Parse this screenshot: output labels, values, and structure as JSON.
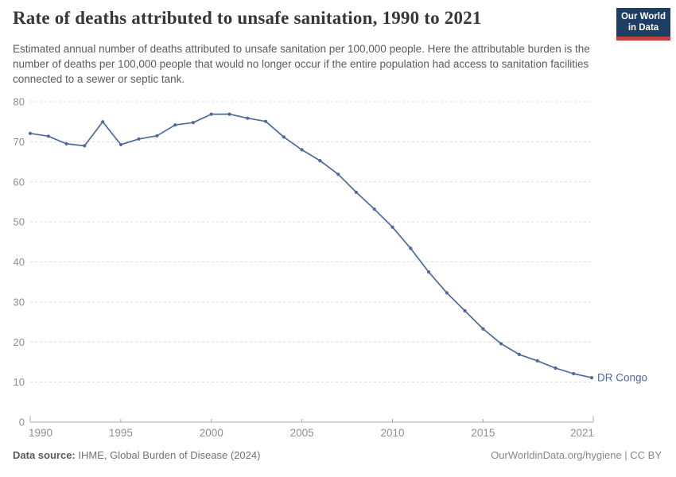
{
  "header": {
    "title": "Rate of deaths attributed to unsafe sanitation, 1990 to 2021",
    "logo": {
      "line1": "Our World",
      "line2": "in Data",
      "bg_color": "#1d3d63",
      "accent_color": "#c4433c"
    }
  },
  "subtitle": "Estimated annual number of deaths attributed to unsafe sanitation per 100,000 people. Here the attributable burden is the number of deaths per 100,000 people that would no longer occur if the entire population had access to sanitation facilities connected to a sewer or septic tank.",
  "chart_data": {
    "type": "line",
    "title": "Rate of deaths attributed to unsafe sanitation, 1990 to 2021",
    "xlabel": "",
    "ylabel": "",
    "xlim": [
      1990,
      2021
    ],
    "ylim": [
      0,
      80
    ],
    "xticks": [
      1990,
      1995,
      2000,
      2005,
      2010,
      2015,
      2021
    ],
    "yticks": [
      0,
      10,
      20,
      30,
      40,
      50,
      60,
      70,
      80
    ],
    "grid": "horizontal-dashed",
    "legend_position": "end-of-line-label",
    "series": [
      {
        "name": "DR Congo",
        "color": "#4C6A9C",
        "x": [
          1990,
          1991,
          1992,
          1993,
          1994,
          1995,
          1996,
          1997,
          1998,
          1999,
          2000,
          2001,
          2002,
          2003,
          2004,
          2005,
          2006,
          2007,
          2008,
          2009,
          2010,
          2011,
          2012,
          2013,
          2014,
          2015,
          2016,
          2017,
          2018,
          2019,
          2020,
          2021
        ],
        "values": [
          72.1,
          71.4,
          69.5,
          69.0,
          75.0,
          69.3,
          70.7,
          71.5,
          74.2,
          74.8,
          76.9,
          76.9,
          75.9,
          75.1,
          71.2,
          68.0,
          65.3,
          61.9,
          57.4,
          53.2,
          48.7,
          43.4,
          37.5,
          32.3,
          27.8,
          23.3,
          19.6,
          16.9,
          15.3,
          13.5,
          12.1,
          11.1
        ]
      }
    ],
    "colors": {
      "line": "#4C6A9C",
      "gridline": "#dcdcdc",
      "axis": "#a8a8a8",
      "tick_label": "#8f8f8f"
    }
  },
  "footer": {
    "datasource_label": "Data source:",
    "datasource_value": "IHME, Global Burden of Disease (2024)",
    "rights": "OurWorldinData.org/hygiene | CC BY"
  }
}
